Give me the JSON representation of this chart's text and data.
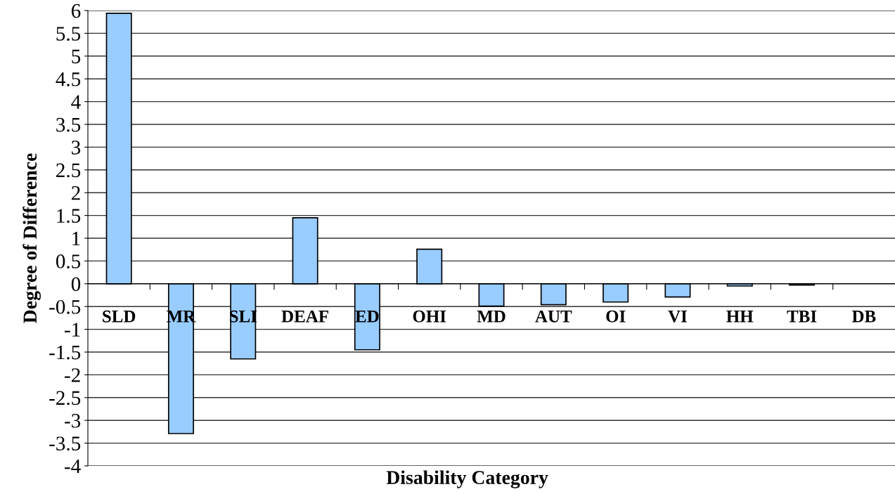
{
  "chart_data": {
    "type": "bar",
    "xlabel": "Disability Category",
    "ylabel": "Degree of Difference",
    "categories": [
      "SLD",
      "MR",
      "SLI",
      "DEAF",
      "ED",
      "OHI",
      "MD",
      "AUT",
      "OI",
      "VI",
      "HH",
      "TBI",
      "DB"
    ],
    "values": [
      5.94,
      -3.29,
      -1.65,
      1.45,
      -1.45,
      0.76,
      -0.49,
      -0.46,
      -0.4,
      -0.29,
      -0.05,
      -0.03,
      0
    ],
    "color": "#99ccff",
    "ylim": [
      -4,
      6
    ],
    "yticks": [
      {
        "value": -4,
        "label": "-4"
      },
      {
        "value": -3.5,
        "label": "-3.5"
      },
      {
        "value": -3,
        "label": "-3"
      },
      {
        "value": -2.5,
        "label": "-2.5"
      },
      {
        "value": -2,
        "label": "-2"
      },
      {
        "value": -1.5,
        "label": "-1.5"
      },
      {
        "value": -1,
        "label": "-1"
      },
      {
        "value": -0.5,
        "label": "-0.5"
      },
      0,
      0.5,
      1,
      1.5,
      2,
      2.5,
      3,
      3.5,
      4,
      4.5,
      5,
      5.5,
      6
    ],
    "grid": "y"
  }
}
